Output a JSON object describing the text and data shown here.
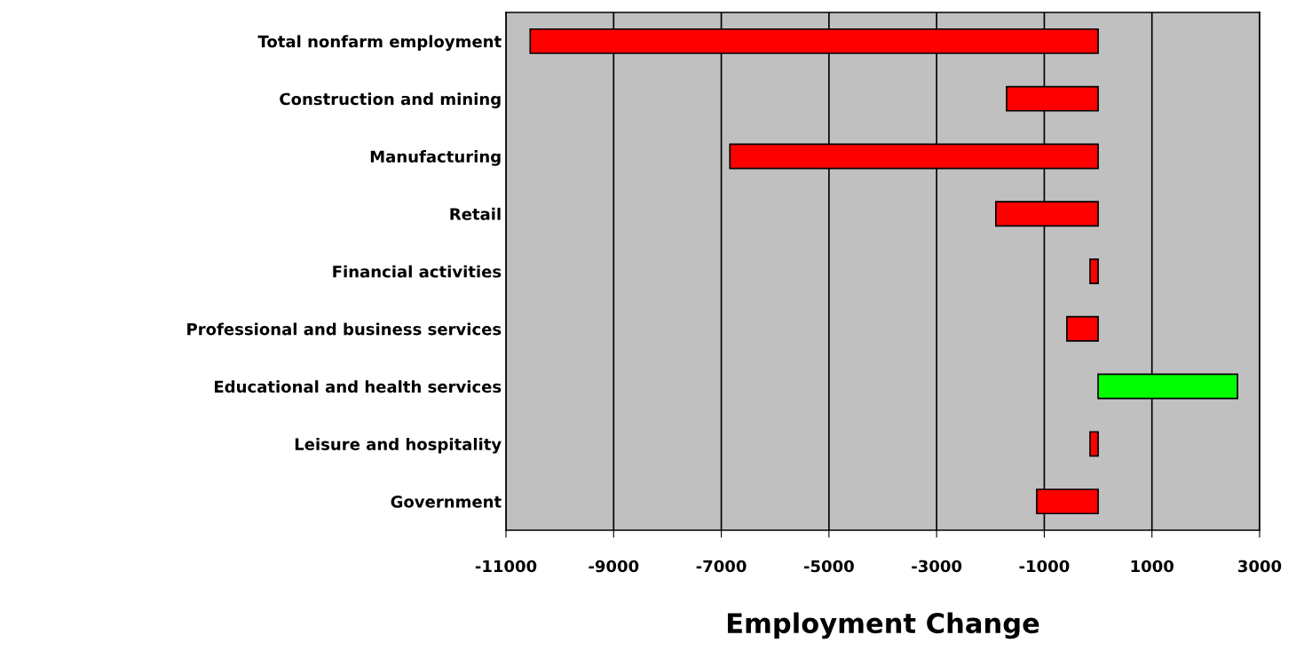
{
  "chart_data": {
    "type": "bar",
    "orientation": "horizontal",
    "xlabel": "Employment Change",
    "categories": [
      "Total nonfarm employment",
      "Construction and mining",
      "Manufacturing",
      "Retail",
      "Financial activities",
      "Professional and business services",
      "Educational and health services",
      "Leisure and hospitality",
      "Government"
    ],
    "values": [
      -10550,
      -1700,
      -6840,
      -1900,
      -150,
      -580,
      2590,
      -150,
      -1140
    ],
    "colors": [
      "#ff0000",
      "#ff0000",
      "#ff0000",
      "#ff0000",
      "#ff0000",
      "#ff0000",
      "#00ff00",
      "#ff0000",
      "#ff0000"
    ],
    "xlim": [
      -11000,
      3000
    ],
    "xticks": [
      -11000,
      -9000,
      -7000,
      -5000,
      -3000,
      -1000,
      1000,
      3000
    ],
    "grid": "x",
    "legend": false
  }
}
